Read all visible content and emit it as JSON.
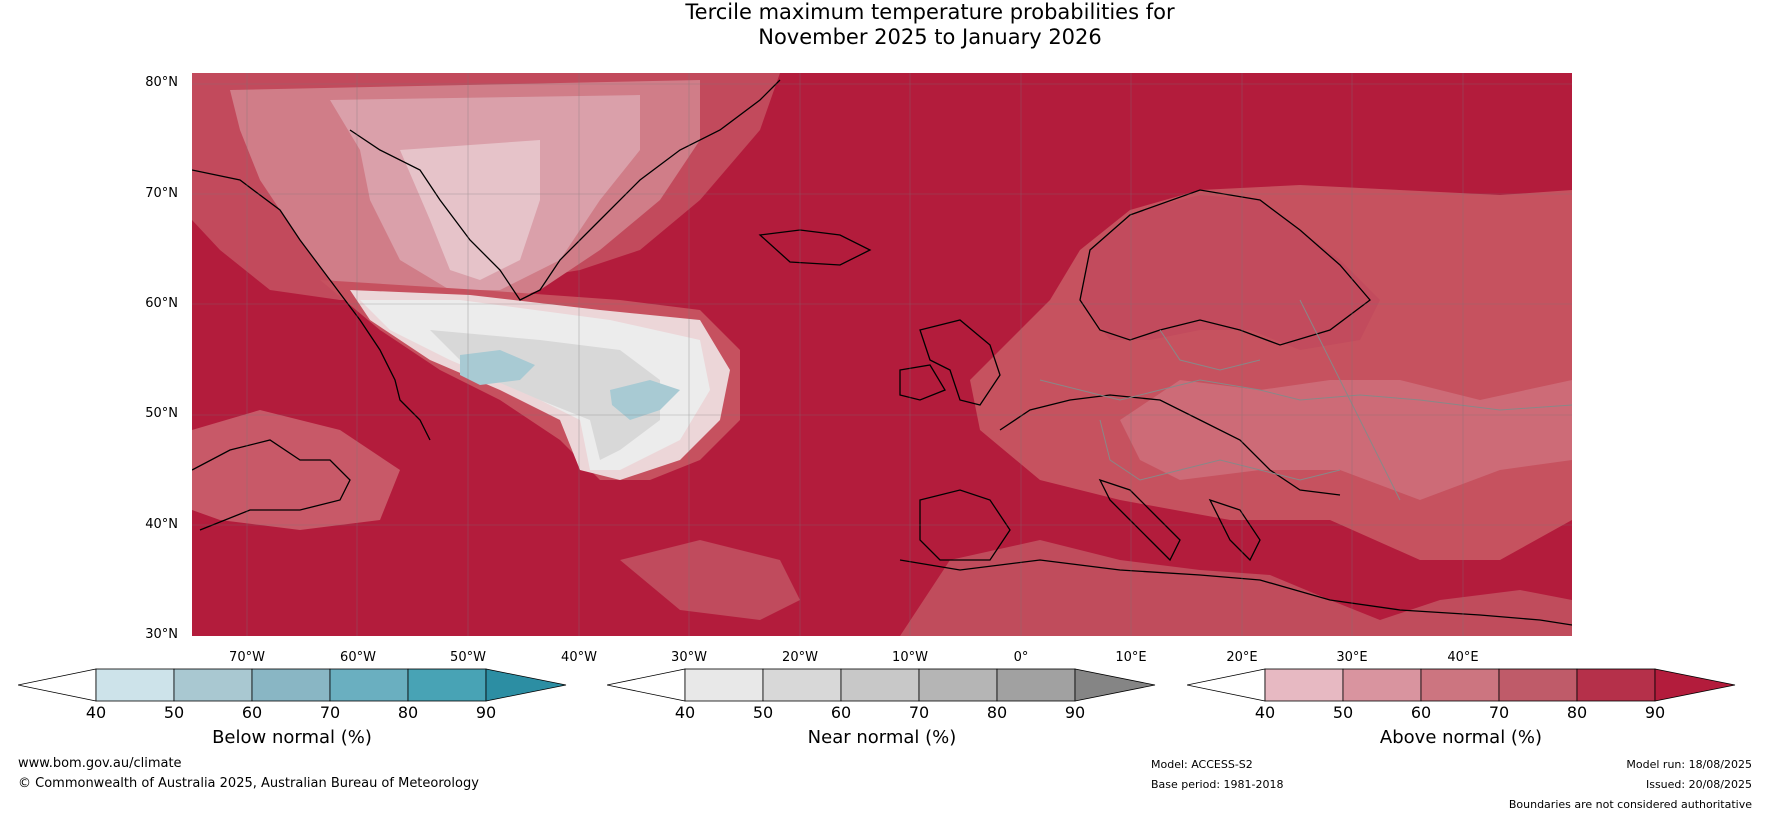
{
  "title": {
    "line1": "Tercile maximum temperature probabilities for",
    "line2": "November 2025 to January 2026"
  },
  "lat_labels": [
    "80°N",
    "70°N",
    "60°N",
    "50°N",
    "40°N",
    "30°N"
  ],
  "lon_labels": [
    "70°W",
    "60°W",
    "50°W",
    "40°W",
    "30°W",
    "20°W",
    "10°W",
    "0°",
    "10°E",
    "20°E",
    "30°E",
    "40°E"
  ],
  "colorbars": [
    {
      "label": "Below normal (%)",
      "ticks": [
        "40",
        "50",
        "60",
        "70",
        "80",
        "90"
      ],
      "colors": [
        "#ffffff",
        "#cde3ea",
        "#a9c8d1",
        "#89b6c4",
        "#6aafc0",
        "#48a3b5",
        "#2c8ea3"
      ]
    },
    {
      "label": "Near normal (%)",
      "ticks": [
        "40",
        "50",
        "60",
        "70",
        "80",
        "90"
      ],
      "colors": [
        "#ffffff",
        "#e8e8e8",
        "#d8d8d8",
        "#c8c8c8",
        "#b5b5b5",
        "#a1a1a1",
        "#858585"
      ]
    },
    {
      "label": "Above normal (%)",
      "ticks": [
        "40",
        "50",
        "60",
        "70",
        "80",
        "90"
      ],
      "colors": [
        "#ffffff",
        "#e7b9c2",
        "#d9949f",
        "#cc7580",
        "#bf5b69",
        "#b5304a",
        "#b31c3c"
      ]
    }
  ],
  "footer": {
    "website": "www.bom.gov.au/climate",
    "copyright": "© Commonwealth of Australia 2025, Australian Bureau of Meteorology",
    "model": "Model: ACCESS-S2",
    "base_period": "Base period: 1981-2018",
    "model_run": "Model run: 18/08/2025",
    "issued": "Issued: 20/08/2025",
    "disclaimer": "Boundaries are not considered authoritative"
  }
}
